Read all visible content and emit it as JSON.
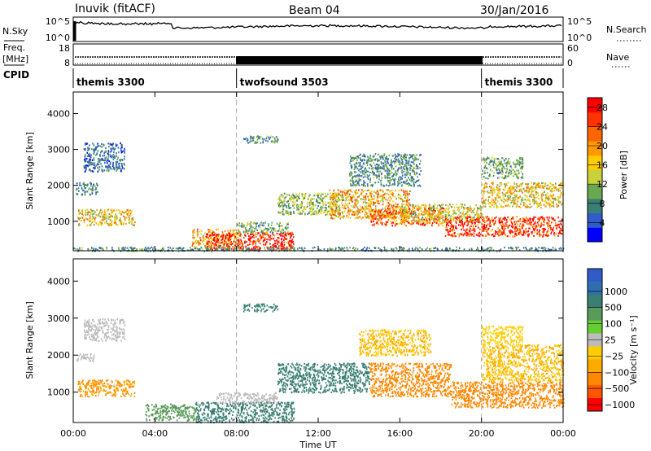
{
  "header": {
    "station": "Inuvik (fitACF)",
    "beam": "Beam 04",
    "date": "30/Jan/2016"
  },
  "top_panels": {
    "nsky_label": "N.Sky",
    "nsky_ticks": [
      "10^5",
      "10^0"
    ],
    "nsearch_label": "N.Search",
    "nsearch_ticks": [
      "10^5",
      "10^0"
    ],
    "freq_label_1": "Freq.",
    "freq_label_2": "[MHz]",
    "freq_ticks": [
      "18",
      "8"
    ],
    "nave_label": "Nave",
    "nave_ticks": [
      "60",
      "0"
    ],
    "cpid_label": "CPID",
    "cpid_segments": [
      {
        "name": "themis 3300",
        "start": 0,
        "end": 8
      },
      {
        "name": "twofsound 3503",
        "start": 8,
        "end": 20
      },
      {
        "name": "themis 3300",
        "start": 20,
        "end": 24
      }
    ]
  },
  "chart_data": [
    {
      "type": "heatmap",
      "title": "",
      "xlabel": "Time UT",
      "ylabel": "Slant Range [km]",
      "xlim": [
        0,
        24
      ],
      "ylim": [
        180,
        4600
      ],
      "x_ticks": [
        "00:00",
        "04:00",
        "08:00",
        "12:00",
        "16:00",
        "20:00",
        "00:00"
      ],
      "y_ticks": [
        "1000",
        "2000",
        "3000",
        "4000"
      ],
      "colorbar": {
        "label": "Power [dB]",
        "ticks": [
          "4",
          "8",
          "12",
          "16",
          "20",
          "24",
          "28"
        ],
        "range": [
          0,
          30
        ],
        "colors": [
          "#0000ff",
          "#2f5cc8",
          "#3a7f74",
          "#6aa84f",
          "#c8d23c",
          "#ffcc00",
          "#ff9900",
          "#ff6600",
          "#ff3300",
          "#ff0000"
        ]
      },
      "regions": [
        {
          "t0": 0.2,
          "t1": 3.0,
          "r0": 900,
          "r1": 1350,
          "v": 16
        },
        {
          "t0": 0.1,
          "t1": 1.2,
          "r0": 1750,
          "r1": 2100,
          "v": 8
        },
        {
          "t0": 5.8,
          "t1": 8.2,
          "r0": 300,
          "r1": 800,
          "v": 18
        },
        {
          "t0": 6.5,
          "t1": 10.8,
          "r0": 220,
          "r1": 700,
          "v": 28
        },
        {
          "t0": 8.0,
          "t1": 10.5,
          "r0": 700,
          "r1": 1000,
          "v": 10
        },
        {
          "t0": 10.0,
          "t1": 13.2,
          "r0": 1200,
          "r1": 1800,
          "v": 12
        },
        {
          "t0": 12.5,
          "t1": 16.5,
          "r0": 1100,
          "r1": 1900,
          "v": 18
        },
        {
          "t0": 14.5,
          "t1": 18.2,
          "r0": 900,
          "r1": 1400,
          "v": 24
        },
        {
          "t0": 16.0,
          "t1": 20.0,
          "r0": 1000,
          "r1": 1500,
          "v": 14
        },
        {
          "t0": 18.2,
          "t1": 24.0,
          "r0": 600,
          "r1": 1150,
          "v": 28
        },
        {
          "t0": 20.0,
          "t1": 24.0,
          "r0": 1400,
          "r1": 2100,
          "v": 16
        },
        {
          "t0": 20.0,
          "t1": 22.0,
          "r0": 2200,
          "r1": 2800,
          "v": 10
        },
        {
          "t0": 8.3,
          "t1": 10.0,
          "r0": 3200,
          "r1": 3400,
          "v": 8
        },
        {
          "t0": 0.5,
          "t1": 2.5,
          "r0": 2400,
          "r1": 3200,
          "v": 6
        },
        {
          "t0": 13.5,
          "t1": 17.0,
          "r0": 2000,
          "r1": 2900,
          "v": 8
        },
        {
          "t0": 0.0,
          "t1": 24.0,
          "r0": 190,
          "r1": 300,
          "v": 8
        }
      ]
    },
    {
      "type": "heatmap",
      "title": "",
      "xlabel": "Time UT",
      "ylabel": "Slant Range [km]",
      "xlim": [
        0,
        24
      ],
      "ylim": [
        180,
        4600
      ],
      "x_ticks": [
        "00:00",
        "04:00",
        "08:00",
        "12:00",
        "16:00",
        "20:00",
        "00:00"
      ],
      "y_ticks": [
        "1000",
        "2000",
        "3000",
        "4000"
      ],
      "colorbar": {
        "label": "Velocity [m s⁻¹]",
        "ticks": [
          "1000",
          "500",
          "100",
          "25",
          "−25",
          "−100",
          "−500",
          "−1000"
        ],
        "colors": [
          "#2f5cc8",
          "#2f6fb0",
          "#3a7f74",
          "#5a9a5a",
          "#66cc33",
          "#bbbbbb",
          "#ffcc00",
          "#ffaa00",
          "#ff8800",
          "#ff5500",
          "#ff0000"
        ]
      },
      "regions": [
        {
          "t0": 0.2,
          "t1": 3.0,
          "r0": 900,
          "r1": 1350,
          "v": -100
        },
        {
          "t0": 0.1,
          "t1": 1.0,
          "r0": 1850,
          "r1": 2050,
          "v": 0
        },
        {
          "t0": 3.5,
          "t1": 6.0,
          "r0": 250,
          "r1": 700,
          "v": 150
        },
        {
          "t0": 6.0,
          "t1": 10.8,
          "r0": 200,
          "r1": 750,
          "v": 300
        },
        {
          "t0": 7.0,
          "t1": 10.0,
          "r0": 700,
          "r1": 1000,
          "v": 0
        },
        {
          "t0": 10.0,
          "t1": 14.5,
          "r0": 1000,
          "r1": 1800,
          "v": 300
        },
        {
          "t0": 14.5,
          "t1": 18.5,
          "r0": 900,
          "r1": 1800,
          "v": -200
        },
        {
          "t0": 18.5,
          "t1": 24.0,
          "r0": 600,
          "r1": 1300,
          "v": -200
        },
        {
          "t0": 20.0,
          "t1": 24.0,
          "r0": 1300,
          "r1": 2300,
          "v": -60
        },
        {
          "t0": 20.0,
          "t1": 22.0,
          "r0": 2300,
          "r1": 2800,
          "v": -40
        },
        {
          "t0": 8.3,
          "t1": 10.0,
          "r0": 3200,
          "r1": 3400,
          "v": 300
        },
        {
          "t0": 0.5,
          "t1": 2.5,
          "r0": 2400,
          "r1": 3000,
          "v": 0
        },
        {
          "t0": 14.0,
          "t1": 17.5,
          "r0": 2000,
          "r1": 2700,
          "v": -60
        }
      ]
    }
  ]
}
